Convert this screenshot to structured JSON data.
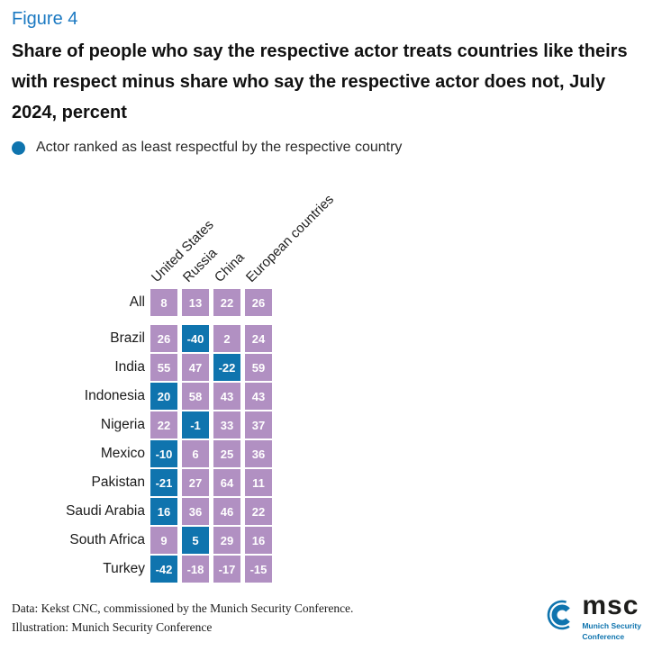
{
  "figure_label": "Figure 4",
  "title": "Share of people who say the respective actor treats countries like theirs with respect minus share who say the respective actor does not, July 2024, percent",
  "legend": {
    "label": "Actor ranked as least respectful by the respective country"
  },
  "colors": {
    "cell_purple": "#b190c2",
    "cell_blue": "#0f74ae",
    "figure_label_blue": "#1b79c2",
    "logo_blue": "#0f74ae"
  },
  "chart_data": {
    "type": "heatmap",
    "title": "Share of people who say the respective actor treats countries like theirs with respect minus share who say the respective actor does not, July 2024, percent",
    "value_unit": "percent",
    "legend_note": "Blue cell = actor ranked as least respectful by the respective country",
    "columns": [
      "United States",
      "Russia",
      "China",
      "European countries"
    ],
    "rows": [
      {
        "label": "All",
        "values": [
          8,
          13,
          22,
          26
        ],
        "least_index": null
      },
      {
        "label": "Brazil",
        "values": [
          26,
          -40,
          2,
          24
        ],
        "least_index": 1
      },
      {
        "label": "India",
        "values": [
          55,
          47,
          -22,
          59
        ],
        "least_index": 2
      },
      {
        "label": "Indonesia",
        "values": [
          20,
          58,
          43,
          43
        ],
        "least_index": 0
      },
      {
        "label": "Nigeria",
        "values": [
          22,
          -1,
          33,
          37
        ],
        "least_index": 1
      },
      {
        "label": "Mexico",
        "values": [
          -10,
          6,
          25,
          36
        ],
        "least_index": 0
      },
      {
        "label": "Pakistan",
        "values": [
          -21,
          27,
          64,
          11
        ],
        "least_index": 0
      },
      {
        "label": "Saudi Arabia",
        "values": [
          16,
          36,
          46,
          22
        ],
        "least_index": 0
      },
      {
        "label": "South Africa",
        "values": [
          9,
          5,
          29,
          16
        ],
        "least_index": 1
      },
      {
        "label": "Turkey",
        "values": [
          -42,
          -18,
          -17,
          -15
        ],
        "least_index": 0
      }
    ]
  },
  "footer": {
    "data_source": "Data: Kekst CNC, commissioned by the Munich Security Conference.",
    "illustration": "Illustration: Munich Security Conference"
  },
  "logo": {
    "text": "msc",
    "caption_line1": "Munich Security",
    "caption_line2": "Conference"
  }
}
